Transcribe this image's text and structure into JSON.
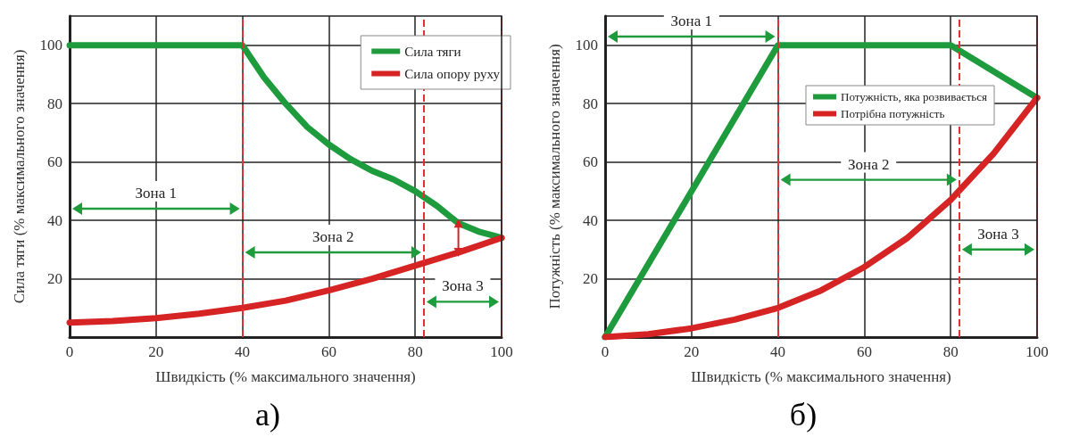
{
  "chart_data": [
    {
      "type": "line",
      "xlabel": "Швидкість (% максимального значення)",
      "ylabel": "Сила тяги (% максимального значення)",
      "xlim": [
        0,
        100
      ],
      "xticks": [
        0,
        20,
        40,
        60,
        80,
        100
      ],
      "ylim": [
        0,
        110
      ],
      "yticks": [
        20,
        40,
        60,
        80,
        100
      ],
      "grid": true,
      "legend": "top right",
      "line_style": "solid",
      "marker": "none",
      "series": [
        {
          "name": "Сила тяги",
          "color": "#1e9b3c",
          "x": [
            0,
            40,
            45,
            50,
            55,
            60,
            65,
            70,
            75,
            80,
            85,
            90,
            95,
            100
          ],
          "values": [
            100,
            100,
            89,
            80,
            72,
            66,
            61,
            57,
            54,
            50,
            45,
            39,
            36,
            34
          ]
        },
        {
          "name": "Сила опору руху",
          "color": "#d62424",
          "x": [
            0,
            10,
            20,
            30,
            40,
            50,
            60,
            70,
            80,
            90,
            100
          ],
          "values": [
            5,
            5.5,
            6.5,
            8,
            10,
            12.5,
            16,
            20,
            24.5,
            29,
            34
          ]
        },
        {
          "type": "line",
          "color": "#d62424",
          "x": [
            90,
            90
          ],
          "values": [
            29,
            39
          ],
          "marker": "triangle"
        }
      ],
      "ref_lines": [
        {
          "axis": "x",
          "value": 40,
          "color": "#e03030",
          "line_style": "dashed"
        },
        {
          "axis": "x",
          "value": 82,
          "color": "#e03030",
          "line_style": "dashed"
        },
        {
          "axis": "x",
          "value": 100,
          "color": "#e03030",
          "line_style": "dashed"
        }
      ],
      "annotations": [
        "Зона 1",
        "Зона 2",
        "Зона 3",
        "а)"
      ]
    },
    {
      "type": "line",
      "xlabel": "Швидкість (% максимального значення)",
      "ylabel": "Потужність (% максимального значення)",
      "xlim": [
        0,
        100
      ],
      "xticks": [
        0,
        20,
        40,
        60,
        80,
        100
      ],
      "ylim": [
        0,
        110
      ],
      "yticks": [
        20,
        40,
        60,
        80,
        100
      ],
      "grid": true,
      "legend": "right",
      "line_style": "solid",
      "marker": "none",
      "series": [
        {
          "name": "Потужність, яка розвивається",
          "color": "#1e9b3c",
          "x": [
            0,
            40,
            80,
            100
          ],
          "values": [
            0,
            100,
            100,
            82
          ]
        },
        {
          "name": "Потрібна потужність",
          "color": "#d62424",
          "x": [
            0,
            10,
            20,
            30,
            40,
            50,
            60,
            70,
            80,
            90,
            100
          ],
          "values": [
            0,
            1,
            3,
            6,
            10,
            16,
            24,
            34,
            47,
            63,
            82
          ]
        }
      ],
      "ref_lines": [
        {
          "axis": "x",
          "value": 40,
          "color": "#e03030",
          "line_style": "dashed"
        },
        {
          "axis": "x",
          "value": 82,
          "color": "#e03030",
          "line_style": "dashed"
        },
        {
          "axis": "x",
          "value": 100,
          "color": "#e03030",
          "line_style": "dashed"
        }
      ],
      "annotations": [
        "Зона 1",
        "Зона 2",
        "Зона 3",
        "б)"
      ]
    }
  ]
}
